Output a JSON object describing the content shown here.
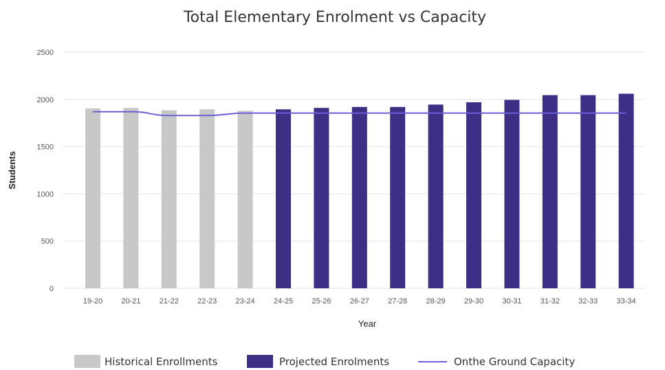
{
  "chart_data": {
    "type": "bar",
    "title": "Total Elementary Enrolment vs Capacity",
    "xlabel": "Year",
    "ylabel": "Students",
    "ylim": [
      0,
      2500
    ],
    "yticks": [
      0,
      500,
      1000,
      1500,
      2000,
      2500
    ],
    "grid": true,
    "legend_position": "bottom",
    "categories": [
      "19-20",
      "20-21",
      "21-22",
      "22-23",
      "23-24",
      "24-25",
      "25-26",
      "26-27",
      "27-28",
      "28-29",
      "29-30",
      "30-31",
      "31-32",
      "32-33",
      "33-34"
    ],
    "series": [
      {
        "name": "Historical Enrollments",
        "kind": "bar",
        "color": "#c8c8c8",
        "values": [
          1905,
          1910,
          1885,
          1895,
          1880,
          null,
          null,
          null,
          null,
          null,
          null,
          null,
          null,
          null,
          null
        ]
      },
      {
        "name": "Projected Enrolments",
        "kind": "bar",
        "color": "#3d2f86",
        "values": [
          null,
          null,
          null,
          null,
          null,
          1895,
          1910,
          1920,
          1920,
          1945,
          1970,
          1995,
          2045,
          2045,
          2060
        ]
      },
      {
        "name": "Onthe Ground Capacity",
        "kind": "line",
        "color": "#6a5fd6",
        "values": [
          1870,
          1870,
          1830,
          1830,
          1855,
          1855,
          1855,
          1855,
          1855,
          1855,
          1855,
          1855,
          1855,
          1855,
          1855
        ]
      }
    ]
  }
}
